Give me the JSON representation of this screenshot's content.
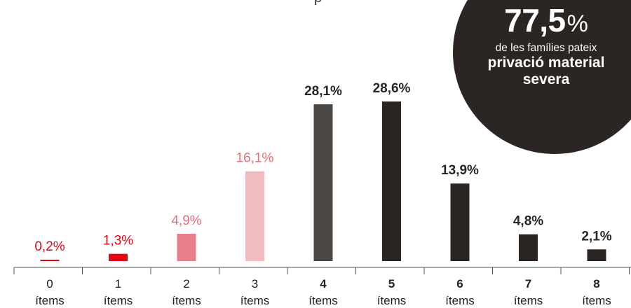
{
  "top_fragment": "p",
  "badge": {
    "value": "77,5",
    "unit": "%",
    "line1": "de les famílies pateix",
    "line2": "privació material",
    "line3": "severa"
  },
  "colors": {
    "bar_red": "#e30613",
    "bar_pink": "#e8808b",
    "bar_light_pink": "#f0bcc1",
    "bar_dark_gray": "#4a4744",
    "bar_dark": "#2b2623",
    "label_red": "#e30613",
    "label_pink": "#e46f7d",
    "label_dark": "#2b2623",
    "badge_bg": "#2b2623"
  },
  "chart_data": {
    "type": "bar",
    "categories": [
      "0",
      "1",
      "2",
      "3",
      "4",
      "5",
      "6",
      "7",
      "8"
    ],
    "category_unit": "ítems",
    "values": [
      0.2,
      1.3,
      4.9,
      16.1,
      28.1,
      28.6,
      13.9,
      4.8,
      2.1
    ],
    "labels": [
      "0,2%",
      "1,3%",
      "4,9%",
      "16,1%",
      "28,1%",
      "28,6%",
      "13,9%",
      "4,8%",
      "2,1%"
    ],
    "bold_from_index": 4,
    "title": "",
    "xlabel": "",
    "ylabel": "",
    "ylim": [
      0,
      30
    ],
    "grid": false
  }
}
